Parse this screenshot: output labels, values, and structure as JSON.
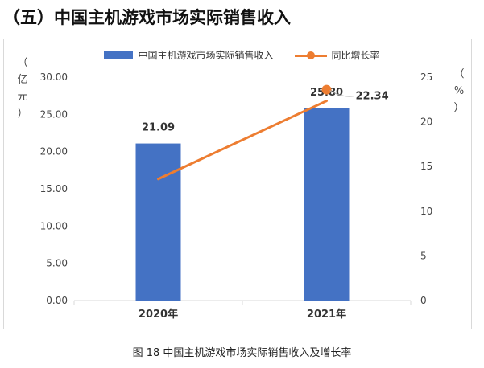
{
  "heading": "（五）中国主机游戏市场实际销售收入",
  "caption": "图 18 中国主机游戏市场实际销售收入及增长率",
  "left_axis_unit": [
    "（",
    "亿",
    "元",
    "）"
  ],
  "right_axis_unit": [
    "（",
    "%",
    "）"
  ],
  "colors": {
    "bar": "#4472C4",
    "line": "#ED7D31",
    "grid": "#d9d9d9"
  },
  "chart_data": {
    "type": "bar+line",
    "categories": [
      "2020年",
      "2021年"
    ],
    "series": [
      {
        "name": "中国主机游戏市场实际销售收入",
        "type": "bar",
        "axis": "left",
        "values": [
          21.09,
          25.8
        ],
        "labels": [
          "21.09",
          "25.80"
        ]
      },
      {
        "name": "同比增长率",
        "type": "line",
        "axis": "right",
        "values": [
          13.6,
          22.34
        ],
        "labels": [
          "",
          "22.34"
        ]
      }
    ],
    "y_left": {
      "min": 0,
      "max": 30,
      "ticks": [
        "0.00",
        "5.00",
        "10.00",
        "15.00",
        "20.00",
        "25.00",
        "30.00"
      ]
    },
    "y_right": {
      "min": 0,
      "max": 25,
      "ticks": [
        "0",
        "5",
        "10",
        "15",
        "20",
        "25"
      ]
    }
  }
}
